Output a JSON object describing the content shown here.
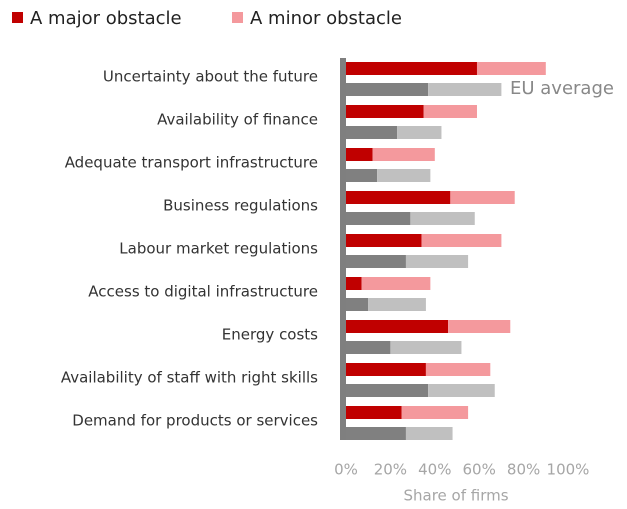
{
  "chart_data": {
    "type": "stacked-bar-horizontal",
    "categories": [
      "Uncertainty about the future",
      "Availability of finance",
      "Adequate transport infrastructure",
      "Business regulations",
      "Labour market regulations",
      "Access to digital infrastructure",
      "Energy costs",
      "Availability of staff with right skills",
      "Demand for products or services"
    ],
    "series": [
      {
        "name": "A major obstacle",
        "color": "#c00000",
        "values": [
          59,
          35,
          12,
          47,
          34,
          7,
          46,
          36,
          25
        ]
      },
      {
        "name": "A minor obstacle",
        "color": "#f4999d",
        "values": [
          31,
          24,
          28,
          29,
          36,
          31,
          28,
          29,
          30
        ]
      }
    ],
    "eu_series": [
      {
        "color": "#808080",
        "values": [
          37,
          23,
          14,
          29,
          27,
          10,
          20,
          37,
          27
        ]
      },
      {
        "color": "#c0c0c0",
        "values": [
          33,
          20,
          24,
          29,
          28,
          26,
          32,
          30,
          21
        ]
      }
    ],
    "annotation": "EU average",
    "xlabel": "Share of firms",
    "xlim": [
      0,
      100
    ],
    "xticks": [
      {
        "value": 0,
        "label": "0%"
      },
      {
        "value": 20,
        "label": "20%"
      },
      {
        "value": 40,
        "label": "40%"
      },
      {
        "value": 60,
        "label": "60%"
      },
      {
        "value": 80,
        "label": "80%"
      },
      {
        "value": 100,
        "label": "100%"
      }
    ],
    "legend": "top-left"
  }
}
